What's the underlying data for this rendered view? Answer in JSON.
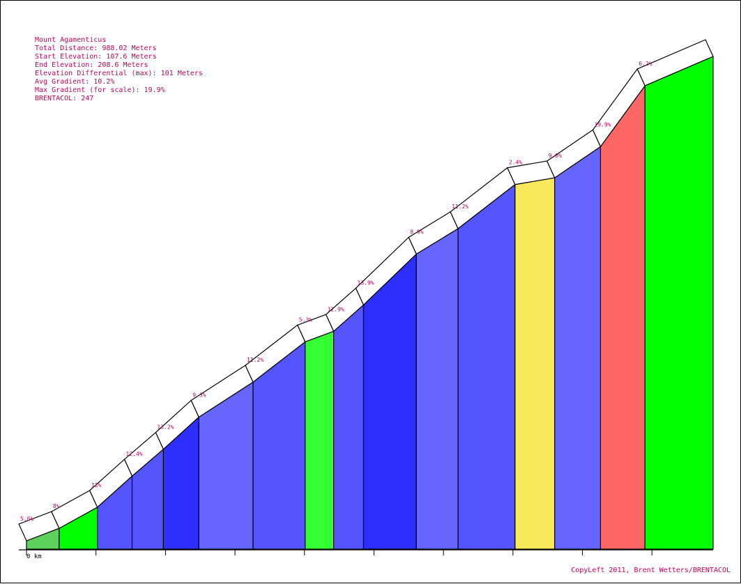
{
  "profile": {
    "title": "Mount Agamenticus",
    "total_distance": "Total Distance: 988.02 Meters",
    "start_elevation": "Start Elevation: 107.6 Meters",
    "end_elevation": "End Elevation: 208.6 Meters",
    "elevation_differential": "Elevation Differential (max): 101 Meters",
    "avg_gradient": "Avg Gradient: 10.2%",
    "max_gradient": "Max Gradient (for scale): 19.9%",
    "brentacol": "BRENTACOL: 247"
  },
  "footer": {
    "credit": "CopyLeft 2011, Brent Wetters/BRENTACOL",
    "origin_label": "0 km"
  },
  "colors": {
    "text": "#c0005a",
    "band": "#ffffff",
    "outline": "#000000",
    "gradient_scale": {
      "0-3": "#00ff00",
      "3-6": "#33ff33",
      "6-8": "#00ff00",
      "8-10": "#6666ff",
      "10-12": "#5555ff",
      "12-14": "#2e2eff",
      "14-18": "#ff6666",
      "18-20": "#ff6666"
    }
  },
  "chart_data": {
    "type": "area",
    "title": "Mount Agamenticus",
    "xlabel": "",
    "ylabel": "",
    "x_unit": "m",
    "y_unit": "m",
    "xlim": [
      0,
      988.02
    ],
    "ylim": [
      107.6,
      208.6
    ],
    "grid": false,
    "segments": [
      {
        "start_m": 0,
        "end_m": 47,
        "gradient": "5.6%",
        "elev_start": 107.6,
        "elev_end": 110.2,
        "color": "#5dd35d"
      },
      {
        "start_m": 47,
        "end_m": 102,
        "gradient": "8%",
        "elev_start": 110.2,
        "elev_end": 114.6,
        "color": "#00ff00"
      },
      {
        "start_m": 102,
        "end_m": 152,
        "gradient": "13%",
        "elev_start": 114.6,
        "elev_end": 121.1,
        "color": "#5555ff"
      },
      {
        "start_m": 152,
        "end_m": 197,
        "gradient": "12.4%",
        "elev_start": 121.1,
        "elev_end": 126.7,
        "color": "#5555ff"
      },
      {
        "start_m": 197,
        "end_m": 248,
        "gradient": "13.2%",
        "elev_start": 126.7,
        "elev_end": 133.4,
        "color": "#2e2eff"
      },
      {
        "start_m": 248,
        "end_m": 326,
        "gradient": "9.3%",
        "elev_start": 133.4,
        "elev_end": 140.7,
        "color": "#6666ff"
      },
      {
        "start_m": 326,
        "end_m": 401,
        "gradient": "11.2%",
        "elev_start": 140.7,
        "elev_end": 149.1,
        "color": "#5555ff"
      },
      {
        "start_m": 401,
        "end_m": 442,
        "gradient": "5.3%",
        "elev_start": 149.1,
        "elev_end": 151.3,
        "color": "#33ff33"
      },
      {
        "start_m": 442,
        "end_m": 485,
        "gradient": "12.9%",
        "elev_start": 151.3,
        "elev_end": 156.8,
        "color": "#5555ff"
      },
      {
        "start_m": 485,
        "end_m": 561,
        "gradient": "13.9%",
        "elev_start": 156.8,
        "elev_end": 167.4,
        "color": "#2e2eff"
      },
      {
        "start_m": 561,
        "end_m": 621,
        "gradient": "8.9%",
        "elev_start": 167.4,
        "elev_end": 172.7,
        "color": "#6666ff"
      },
      {
        "start_m": 621,
        "end_m": 703,
        "gradient": "11.2%",
        "elev_start": 172.7,
        "elev_end": 181.9,
        "color": "#5555ff"
      },
      {
        "start_m": 703,
        "end_m": 760,
        "gradient": "2.4%",
        "elev_start": 181.9,
        "elev_end": 183.3,
        "color": "#f7e95a"
      },
      {
        "start_m": 760,
        "end_m": 826,
        "gradient": "9.8%",
        "elev_start": 183.3,
        "elev_end": 189.8,
        "color": "#6666ff"
      },
      {
        "start_m": 826,
        "end_m": 890,
        "gradient": "19.9%",
        "elev_start": 189.8,
        "elev_end": 202.5,
        "color": "#ff6666"
      },
      {
        "start_m": 890,
        "end_m": 988.02,
        "gradient": "6.2%",
        "elev_start": 202.5,
        "elev_end": 208.6,
        "color": "#00ff00"
      }
    ]
  }
}
